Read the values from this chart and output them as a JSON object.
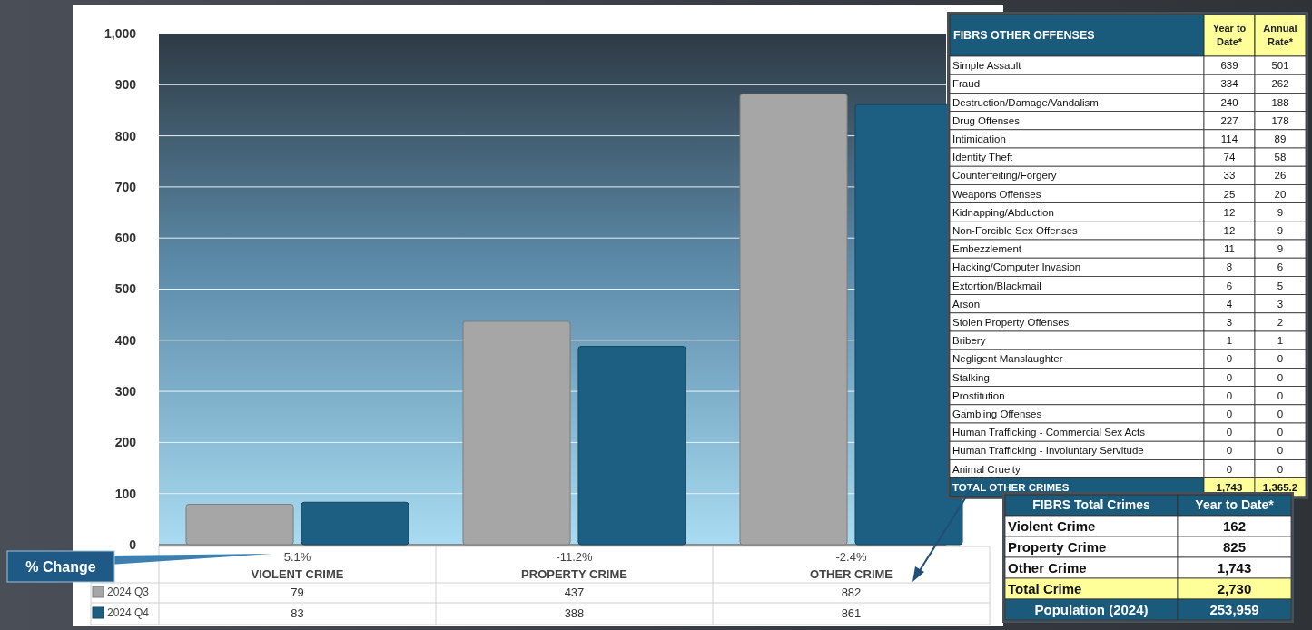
{
  "chart_data": [
    {
      "type": "bar",
      "categories": [
        "VIOLENT CRIME",
        "PROPERTY CRIME",
        "OTHER CRIME"
      ],
      "series": [
        {
          "name": "2024 Q3",
          "color": "#a6a6a6",
          "values": [
            79,
            437,
            882
          ]
        },
        {
          "name": "2024 Q4",
          "color": "#1d5f82",
          "values": [
            83,
            388,
            861
          ]
        }
      ],
      "ylim": [
        0,
        1000
      ],
      "yticks": [
        0,
        100,
        200,
        300,
        400,
        500,
        600,
        700,
        800,
        900,
        {
          "value": 1000,
          "label": "1,000"
        }
      ],
      "grid": "y",
      "legend": "bottom",
      "data_labels": true,
      "annotations": [
        "% Change",
        "5.1%",
        "-11.2%",
        "-2.4%"
      ]
    },
    {
      "type": "other",
      "title": "FIBRS OTHER OFFENSES",
      "categories": [
        "Simple Assault",
        "Fraud",
        "Destruction/Damage/Vandalism",
        "Drug Offenses",
        "Intimidation",
        "Identity Theft",
        "Counterfeiting/Forgery",
        "Weapons Offenses",
        "Kidnapping/Abduction",
        "Non-Forcible Sex Offenses",
        "Embezzlement",
        "Hacking/Computer Invasion",
        "Extortion/Blackmail",
        "Arson",
        "Stolen Property Offenses",
        "Bribery",
        "Negligent Manslaughter",
        "Stalking",
        "Prostitution",
        "Gambling Offenses",
        "Human Trafficking - Commercial Sex Acts",
        "Human Trafficking - Involuntary Servitude",
        "Animal Cruelty",
        "TOTAL OTHER CRIMES"
      ],
      "colors": [
        "#ffffff",
        "#ffffff",
        "#ffffff",
        "#ffffff",
        "#ffffff",
        "#ffffff",
        "#ffffff",
        "#ffffff",
        "#ffffff",
        "#ffffff",
        "#ffffff",
        "#ffffff",
        "#ffffff",
        "#ffffff",
        "#ffffff",
        "#ffffff",
        "#ffffff",
        "#ffffff",
        "#ffffff",
        "#ffffff",
        "#ffffff",
        "#ffffff",
        "#ffffff",
        "#1a5a7a"
      ],
      "series": [
        {
          "name": "Year to Date*",
          "color": "#ffff99",
          "values": [
            639,
            334,
            240,
            227,
            114,
            74,
            33,
            25,
            12,
            12,
            11,
            8,
            6,
            4,
            3,
            1,
            0,
            0,
            0,
            0,
            0,
            0,
            0,
            1743
          ],
          "value_labels": [
            "639",
            "334",
            "240",
            "227",
            "114",
            "74",
            "33",
            "25",
            "12",
            "12",
            "11",
            "8",
            "6",
            "4",
            "3",
            "1",
            "0",
            "0",
            "0",
            "0",
            "0",
            "0",
            "0",
            "1,743"
          ],
          "colors": [
            "#ffffff",
            "#ffffff",
            "#ffffff",
            "#ffffff",
            "#ffffff",
            "#ffffff",
            "#ffffff",
            "#ffffff",
            "#ffffff",
            "#ffffff",
            "#ffffff",
            "#ffffff",
            "#ffffff",
            "#ffffff",
            "#ffffff",
            "#ffffff",
            "#ffffff",
            "#ffffff",
            "#ffffff",
            "#ffffff",
            "#ffffff",
            "#ffffff",
            "#ffffff",
            "#ffff99"
          ]
        },
        {
          "name": "Annual Rate*",
          "color": "#ffff99",
          "values": [
            501,
            262,
            188,
            178,
            89,
            58,
            26,
            20,
            9,
            9,
            9,
            6,
            5,
            3,
            2,
            1,
            0,
            0,
            0,
            0,
            0,
            0,
            0,
            1365.2
          ],
          "value_labels": [
            "501",
            "262",
            "188",
            "178",
            "89",
            "58",
            "26",
            "20",
            "9",
            "9",
            "9",
            "6",
            "5",
            "3",
            "2",
            "1",
            "0",
            "0",
            "0",
            "0",
            "0",
            "0",
            "0",
            "1,365.2"
          ],
          "colors": [
            "#ffffff",
            "#ffffff",
            "#ffffff",
            "#ffffff",
            "#ffffff",
            "#ffffff",
            "#ffffff",
            "#ffffff",
            "#ffffff",
            "#ffffff",
            "#ffffff",
            "#ffffff",
            "#ffffff",
            "#ffffff",
            "#ffffff",
            "#ffffff",
            "#ffffff",
            "#ffffff",
            "#ffffff",
            "#ffffff",
            "#ffffff",
            "#ffffff",
            "#ffffff",
            "#ffff99"
          ]
        }
      ],
      "data_labels": true
    },
    {
      "type": "other",
      "title": "FIBRS Total Crimes",
      "categories": [
        "Violent Crime",
        "Property Crime",
        "Other Crime",
        "Total Crime",
        "Population (2024)"
      ],
      "colors": [
        "#ffffff",
        "#ffffff",
        "#ffffff",
        "#ffff99",
        "#1a5a7a"
      ],
      "series": [
        {
          "name": "Year to Date*",
          "color": "#1a5a7a",
          "values": [
            162,
            825,
            1743,
            2730,
            253959
          ],
          "value_labels": [
            "162",
            "825",
            "1,743",
            "2,730",
            "253,959"
          ],
          "colors": [
            "#ffffff",
            "#ffffff",
            "#ffffff",
            "#ffff99",
            "#1a5a7a"
          ]
        }
      ],
      "data_labels": true
    }
  ]
}
